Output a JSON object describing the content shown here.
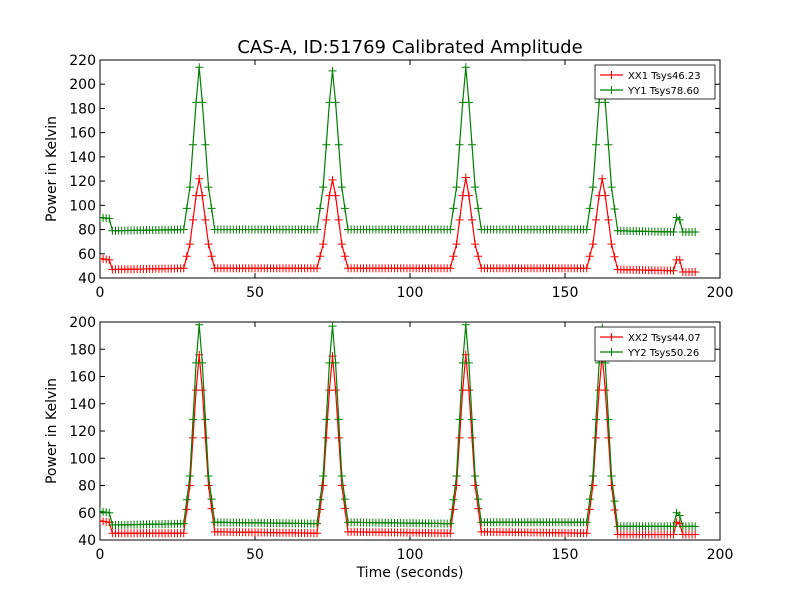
{
  "figure": {
    "title": "CAS-A, ID:51769 Calibrated Amplitude",
    "xlabel": "Time (seconds)"
  },
  "colors": {
    "xx": "#ff0000",
    "yy": "#008000",
    "axes": "#000000",
    "background": "#ffffff"
  },
  "chart_data": [
    {
      "type": "line",
      "marker": "plus",
      "xlabel": "",
      "ylabel": "Power in Kelvin",
      "xlim": [
        0,
        200
      ],
      "ylim": [
        40,
        220
      ],
      "xticks": [
        0,
        50,
        100,
        150,
        200
      ],
      "yticks": [
        40,
        60,
        80,
        100,
        120,
        140,
        160,
        180,
        200,
        220
      ],
      "grid": false,
      "legend_position": "top-right",
      "series": [
        {
          "name": "XX1 Tsys46.23",
          "color": "#ff0000",
          "baseline": 46.5,
          "x": [
            0,
            3,
            4,
            27,
            29,
            31,
            32,
            33,
            35,
            37,
            70,
            72,
            74,
            75,
            76,
            78,
            80,
            113,
            115,
            117,
            118,
            119,
            121,
            123,
            157,
            159,
            161,
            162,
            163,
            165,
            167,
            185,
            186,
            187,
            188,
            189,
            192
          ],
          "y": [
            56,
            55,
            47,
            48,
            68,
            108,
            122,
            108,
            68,
            48,
            48,
            68,
            108,
            121,
            108,
            68,
            48,
            48,
            68,
            108,
            123,
            108,
            68,
            48,
            48,
            68,
            108,
            122,
            108,
            68,
            47,
            46,
            55,
            55,
            45,
            45,
            45
          ]
        },
        {
          "name": "YY1 Tsys78.60",
          "color": "#008000",
          "baseline": 79,
          "x": [
            0,
            3,
            4,
            27,
            29,
            31,
            32,
            33,
            35,
            37,
            70,
            72,
            74,
            75,
            76,
            78,
            80,
            113,
            115,
            117,
            118,
            119,
            121,
            123,
            157,
            159,
            161,
            162,
            163,
            165,
            167,
            185,
            186,
            187,
            188,
            189,
            192
          ],
          "y": [
            90,
            89,
            79,
            80,
            115,
            185,
            214,
            185,
            115,
            80,
            80,
            115,
            185,
            211,
            185,
            115,
            80,
            80,
            115,
            185,
            214,
            185,
            115,
            80,
            80,
            115,
            185,
            212,
            185,
            115,
            79,
            78,
            90,
            88,
            78,
            78,
            78
          ]
        }
      ]
    },
    {
      "type": "line",
      "marker": "plus",
      "xlabel": "Time (seconds)",
      "ylabel": "Power in Kelvin",
      "xlim": [
        0,
        200
      ],
      "ylim": [
        40,
        200
      ],
      "xticks": [
        0,
        50,
        100,
        150,
        200
      ],
      "yticks": [
        40,
        60,
        80,
        100,
        120,
        140,
        160,
        180,
        200
      ],
      "grid": false,
      "legend_position": "top-right",
      "series": [
        {
          "name": "XX2 Tsys44.07",
          "color": "#ff0000",
          "baseline": 44.5,
          "x": [
            0,
            3,
            4,
            27,
            29,
            31,
            32,
            33,
            35,
            37,
            70,
            72,
            74,
            75,
            76,
            78,
            80,
            113,
            115,
            117,
            118,
            119,
            121,
            123,
            157,
            159,
            161,
            162,
            163,
            165,
            167,
            185,
            186,
            187,
            188,
            189,
            192
          ],
          "y": [
            54,
            53,
            45,
            45,
            80,
            150,
            176,
            150,
            80,
            46,
            45,
            80,
            150,
            175,
            150,
            80,
            46,
            45,
            80,
            150,
            176,
            150,
            80,
            46,
            45,
            80,
            150,
            176,
            150,
            80,
            44,
            44,
            53,
            52,
            44,
            44,
            44
          ]
        },
        {
          "name": "YY2 Tsys50.26",
          "color": "#008000",
          "baseline": 51,
          "x": [
            0,
            3,
            4,
            27,
            29,
            31,
            32,
            33,
            35,
            37,
            70,
            72,
            74,
            75,
            76,
            78,
            80,
            113,
            115,
            117,
            118,
            119,
            121,
            123,
            157,
            159,
            161,
            162,
            163,
            165,
            167,
            185,
            186,
            187,
            188,
            189,
            192
          ],
          "y": [
            61,
            60,
            51,
            52,
            87,
            170,
            198,
            170,
            87,
            53,
            52,
            87,
            170,
            197,
            170,
            87,
            53,
            52,
            87,
            170,
            198,
            170,
            87,
            53,
            53,
            87,
            170,
            196,
            170,
            87,
            50,
            50,
            60,
            58,
            50,
            50,
            50
          ]
        }
      ]
    }
  ]
}
